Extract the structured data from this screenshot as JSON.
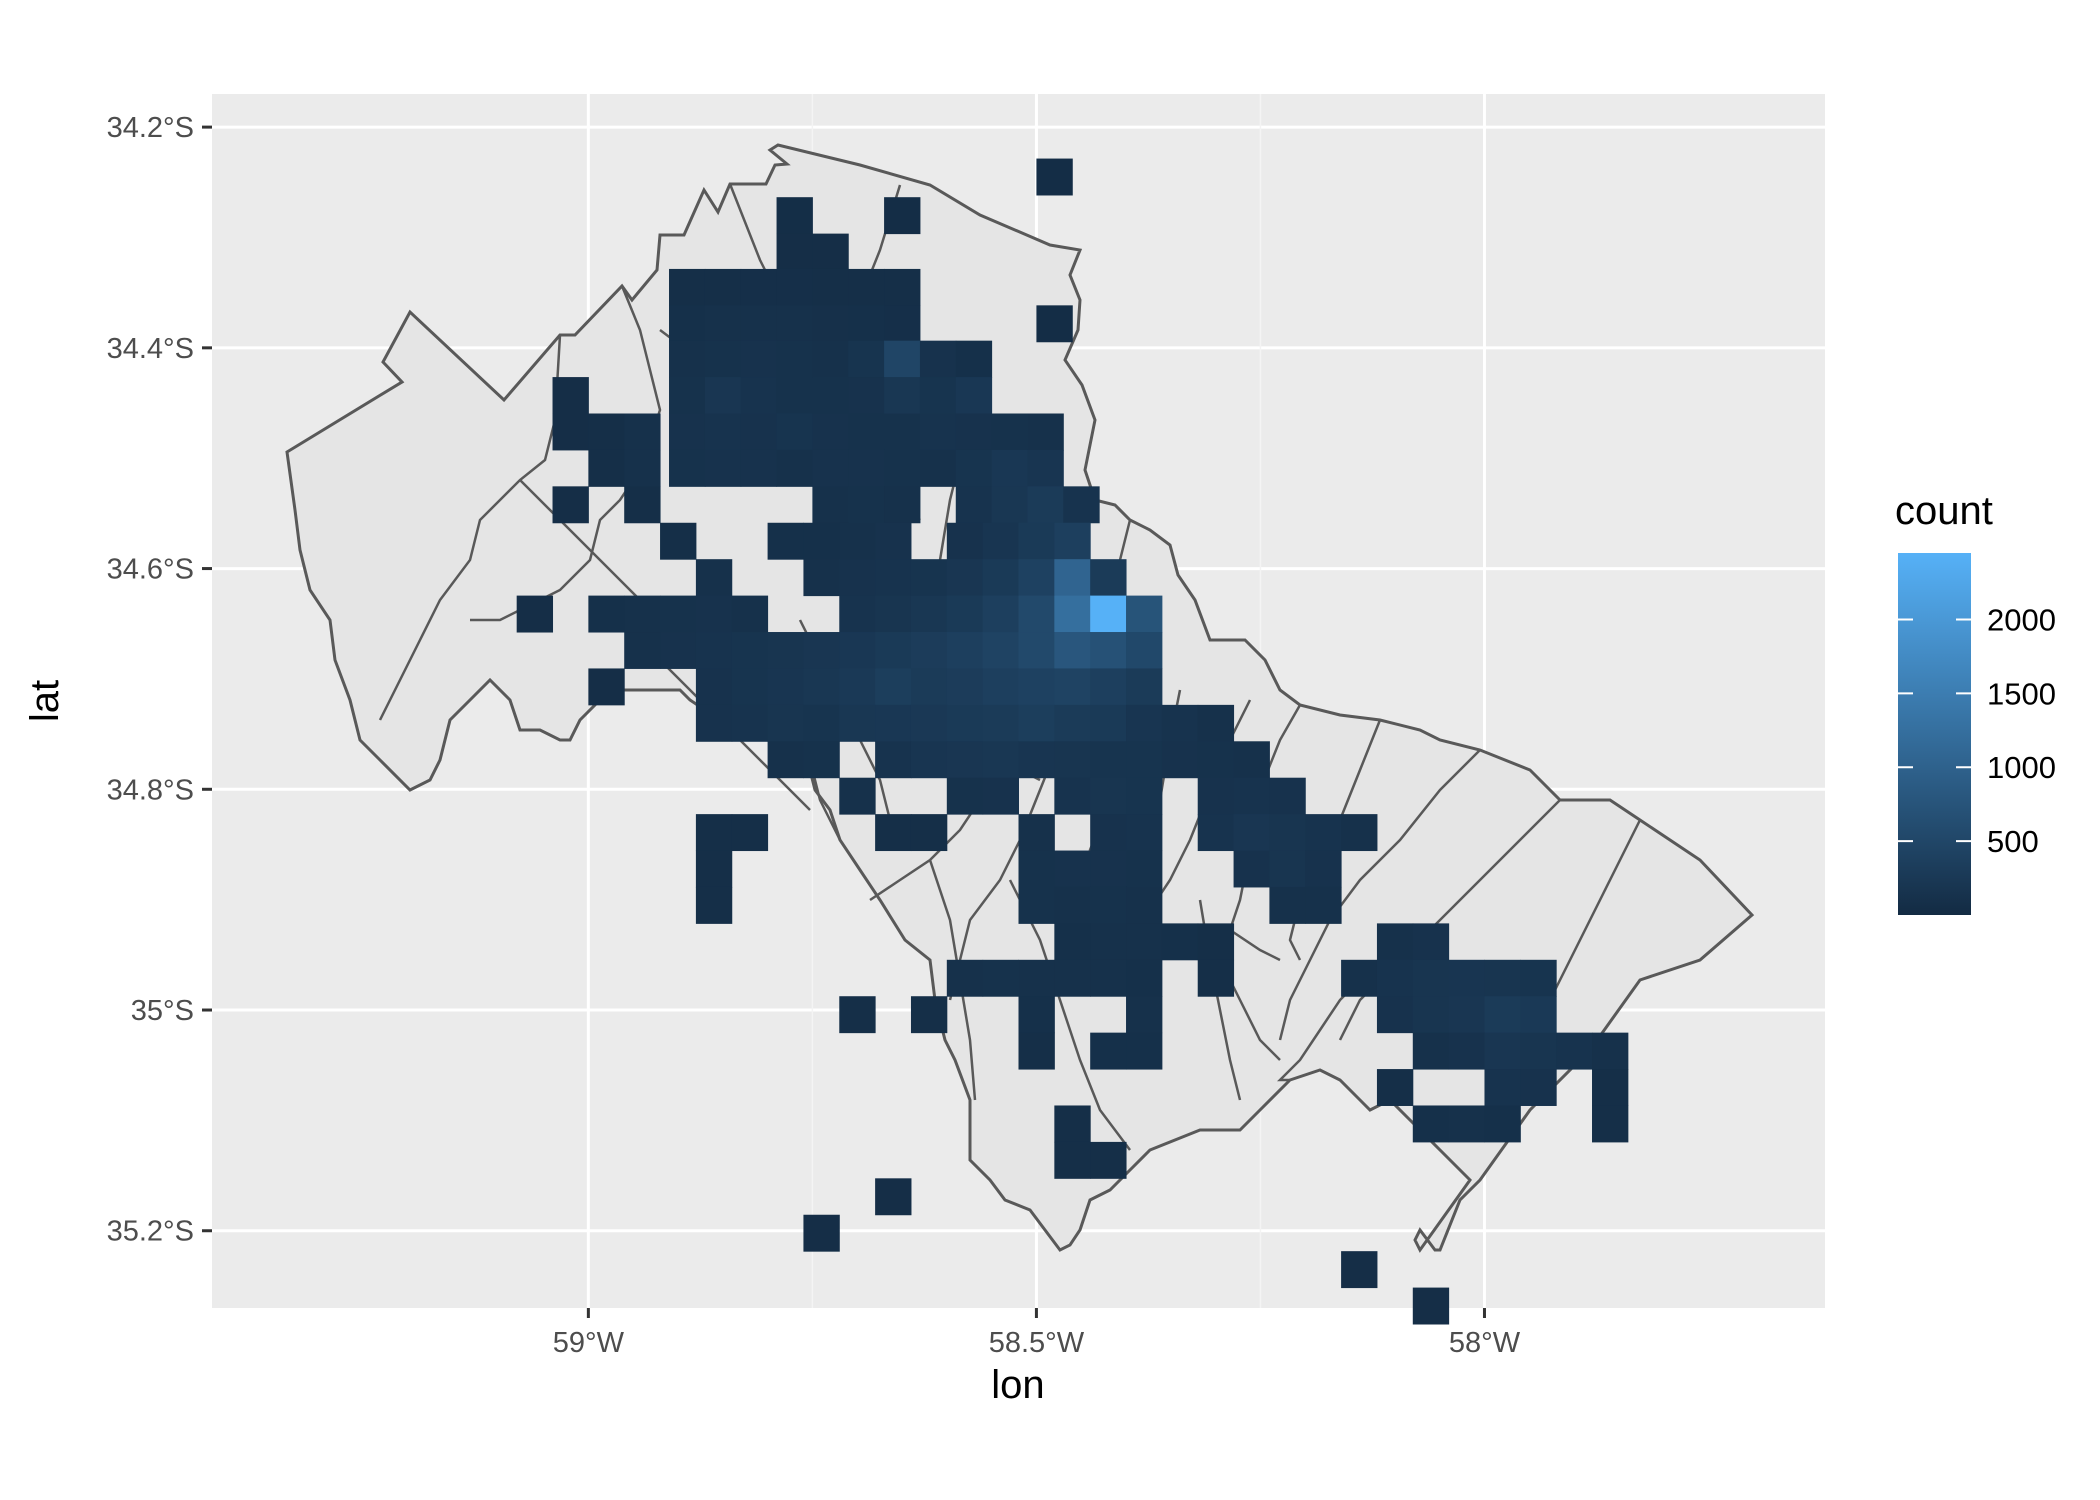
{
  "chart_data": {
    "type": "heatmap",
    "subtype": "2d-bin-count over map",
    "title": "",
    "xlabel": "lon",
    "ylabel": "lat",
    "xlim": [
      -59.42,
      -57.62
    ],
    "ylim": [
      -35.27,
      -34.17
    ],
    "x_ticks": [
      {
        "value": -59.0,
        "label": "59°W"
      },
      {
        "value": -58.5,
        "label": "58.5°W"
      },
      {
        "value": -58.0,
        "label": "58°W"
      }
    ],
    "y_ticks": [
      {
        "value": -34.2,
        "label": "34.2°S"
      },
      {
        "value": -34.4,
        "label": "34.4°S"
      },
      {
        "value": -34.6,
        "label": "34.6°S"
      },
      {
        "value": -34.8,
        "label": "34.8°S"
      },
      {
        "value": -35.0,
        "label": "35°S"
      },
      {
        "value": -35.2,
        "label": "35.2°S"
      }
    ],
    "grid": true,
    "legend": {
      "title": "count",
      "position": "right",
      "range": [
        0,
        2450
      ],
      "breaks": [
        500,
        1000,
        1500,
        2000
      ],
      "colors": [
        "#132b43",
        "#56b1f7"
      ]
    },
    "bin_size": {
      "lon": 0.04,
      "lat": 0.033
    },
    "bin_counts": [
      [
        -58.48,
        -34.245,
        20
      ],
      [
        -58.65,
        -34.28,
        20
      ],
      [
        -58.77,
        -34.28,
        25
      ],
      [
        -58.77,
        -34.313,
        30
      ],
      [
        -58.73,
        -34.313,
        30
      ],
      [
        -58.89,
        -34.345,
        40
      ],
      [
        -58.85,
        -34.345,
        40
      ],
      [
        -58.81,
        -34.345,
        45
      ],
      [
        -58.77,
        -34.345,
        45
      ],
      [
        -58.73,
        -34.345,
        40
      ],
      [
        -58.69,
        -34.345,
        40
      ],
      [
        -58.65,
        -34.345,
        35
      ],
      [
        -58.89,
        -34.378,
        50
      ],
      [
        -58.85,
        -34.378,
        60
      ],
      [
        -58.81,
        -34.378,
        60
      ],
      [
        -58.77,
        -34.378,
        60
      ],
      [
        -58.73,
        -34.378,
        55
      ],
      [
        -58.69,
        -34.378,
        50
      ],
      [
        -58.65,
        -34.378,
        45
      ],
      [
        -58.48,
        -34.378,
        20
      ],
      [
        -58.89,
        -34.41,
        60
      ],
      [
        -58.85,
        -34.41,
        70
      ],
      [
        -58.81,
        -34.41,
        80
      ],
      [
        -58.77,
        -34.41,
        70
      ],
      [
        -58.73,
        -34.41,
        60
      ],
      [
        -58.69,
        -34.41,
        100
      ],
      [
        -58.65,
        -34.41,
        360
      ],
      [
        -58.61,
        -34.41,
        80
      ],
      [
        -58.57,
        -34.41,
        50
      ],
      [
        -59.02,
        -34.443,
        30
      ],
      [
        -58.89,
        -34.443,
        70
      ],
      [
        -58.85,
        -34.443,
        130
      ],
      [
        -58.81,
        -34.443,
        90
      ],
      [
        -58.77,
        -34.443,
        70
      ],
      [
        -58.73,
        -34.443,
        70
      ],
      [
        -58.69,
        -34.443,
        80
      ],
      [
        -58.65,
        -34.443,
        140
      ],
      [
        -58.61,
        -34.443,
        100
      ],
      [
        -58.57,
        -34.443,
        150
      ],
      [
        -59.02,
        -34.476,
        30
      ],
      [
        -58.98,
        -34.476,
        40
      ],
      [
        -58.94,
        -34.476,
        60
      ],
      [
        -58.89,
        -34.476,
        80
      ],
      [
        -58.85,
        -34.476,
        90
      ],
      [
        -58.81,
        -34.476,
        80
      ],
      [
        -58.77,
        -34.476,
        100
      ],
      [
        -58.73,
        -34.476,
        80
      ],
      [
        -58.69,
        -34.476,
        70
      ],
      [
        -58.65,
        -34.476,
        70
      ],
      [
        -58.61,
        -34.476,
        90
      ],
      [
        -58.57,
        -34.476,
        80
      ],
      [
        -58.53,
        -34.476,
        70
      ],
      [
        -58.49,
        -34.476,
        60
      ],
      [
        -58.98,
        -34.509,
        40
      ],
      [
        -58.94,
        -34.509,
        60
      ],
      [
        -58.89,
        -34.509,
        70
      ],
      [
        -58.85,
        -34.509,
        80
      ],
      [
        -58.81,
        -34.509,
        80
      ],
      [
        -58.77,
        -34.509,
        60
      ],
      [
        -58.73,
        -34.509,
        80
      ],
      [
        -58.69,
        -34.509,
        80
      ],
      [
        -58.65,
        -34.509,
        70
      ],
      [
        -58.61,
        -34.509,
        60
      ],
      [
        -58.57,
        -34.509,
        100
      ],
      [
        -58.53,
        -34.509,
        150
      ],
      [
        -58.49,
        -34.509,
        120
      ],
      [
        -59.02,
        -34.542,
        30
      ],
      [
        -58.94,
        -34.542,
        40
      ],
      [
        -58.73,
        -34.542,
        60
      ],
      [
        -58.69,
        -34.542,
        70
      ],
      [
        -58.65,
        -34.542,
        60
      ],
      [
        -58.57,
        -34.542,
        90
      ],
      [
        -58.53,
        -34.542,
        140
      ],
      [
        -58.49,
        -34.542,
        200
      ],
      [
        -58.45,
        -34.542,
        90
      ],
      [
        -58.9,
        -34.575,
        40
      ],
      [
        -58.78,
        -34.575,
        50
      ],
      [
        -58.74,
        -34.575,
        50
      ],
      [
        -58.7,
        -34.575,
        60
      ],
      [
        -58.66,
        -34.575,
        80
      ],
      [
        -58.58,
        -34.575,
        80
      ],
      [
        -58.54,
        -34.575,
        120
      ],
      [
        -58.5,
        -34.575,
        180
      ],
      [
        -58.46,
        -34.575,
        260
      ],
      [
        -58.86,
        -34.608,
        60
      ],
      [
        -58.74,
        -34.608,
        60
      ],
      [
        -58.7,
        -34.608,
        80
      ],
      [
        -58.66,
        -34.608,
        90
      ],
      [
        -58.62,
        -34.608,
        100
      ],
      [
        -58.58,
        -34.608,
        130
      ],
      [
        -58.54,
        -34.608,
        180
      ],
      [
        -58.5,
        -34.608,
        300
      ],
      [
        -58.46,
        -34.608,
        900
      ],
      [
        -58.42,
        -34.608,
        200
      ],
      [
        -59.06,
        -34.641,
        30
      ],
      [
        -58.98,
        -34.641,
        50
      ],
      [
        -58.94,
        -34.641,
        60
      ],
      [
        -58.9,
        -34.641,
        70
      ],
      [
        -58.86,
        -34.641,
        80
      ],
      [
        -58.82,
        -34.641,
        60
      ],
      [
        -58.7,
        -34.641,
        90
      ],
      [
        -58.66,
        -34.641,
        110
      ],
      [
        -58.62,
        -34.641,
        140
      ],
      [
        -58.58,
        -34.641,
        180
      ],
      [
        -58.54,
        -34.641,
        260
      ],
      [
        -58.5,
        -34.641,
        420
      ],
      [
        -58.46,
        -34.641,
        1100
      ],
      [
        -58.42,
        -34.641,
        2450
      ],
      [
        -58.38,
        -34.641,
        600
      ],
      [
        -58.94,
        -34.674,
        60
      ],
      [
        -58.9,
        -34.674,
        80
      ],
      [
        -58.86,
        -34.674,
        90
      ],
      [
        -58.82,
        -34.674,
        100
      ],
      [
        -58.78,
        -34.674,
        110
      ],
      [
        -58.74,
        -34.674,
        130
      ],
      [
        -58.7,
        -34.674,
        150
      ],
      [
        -58.66,
        -34.674,
        180
      ],
      [
        -58.62,
        -34.674,
        220
      ],
      [
        -58.58,
        -34.674,
        260
      ],
      [
        -58.54,
        -34.674,
        320
      ],
      [
        -58.5,
        -34.674,
        420
      ],
      [
        -58.46,
        -34.674,
        650
      ],
      [
        -58.42,
        -34.674,
        550
      ],
      [
        -58.38,
        -34.674,
        400
      ],
      [
        -58.98,
        -34.707,
        30
      ],
      [
        -58.86,
        -34.707,
        80
      ],
      [
        -58.82,
        -34.707,
        100
      ],
      [
        -58.78,
        -34.707,
        120
      ],
      [
        -58.74,
        -34.707,
        140
      ],
      [
        -58.7,
        -34.707,
        170
      ],
      [
        -58.66,
        -34.707,
        240
      ],
      [
        -58.62,
        -34.707,
        200
      ],
      [
        -58.58,
        -34.707,
        220
      ],
      [
        -58.54,
        -34.707,
        260
      ],
      [
        -58.5,
        -34.707,
        300
      ],
      [
        -58.46,
        -34.707,
        320
      ],
      [
        -58.42,
        -34.707,
        260
      ],
      [
        -58.38,
        -34.707,
        200
      ],
      [
        -58.86,
        -34.74,
        80
      ],
      [
        -58.82,
        -34.74,
        90
      ],
      [
        -58.78,
        -34.74,
        110
      ],
      [
        -58.74,
        -34.74,
        100
      ],
      [
        -58.7,
        -34.74,
        140
      ],
      [
        -58.66,
        -34.74,
        150
      ],
      [
        -58.62,
        -34.74,
        160
      ],
      [
        -58.58,
        -34.74,
        180
      ],
      [
        -58.54,
        -34.74,
        200
      ],
      [
        -58.5,
        -34.74,
        240
      ],
      [
        -58.46,
        -34.74,
        200
      ],
      [
        -58.42,
        -34.74,
        180
      ],
      [
        -58.38,
        -34.74,
        120
      ],
      [
        -58.34,
        -34.74,
        90
      ],
      [
        -58.3,
        -34.74,
        60
      ],
      [
        -58.78,
        -34.773,
        60
      ],
      [
        -58.74,
        -34.773,
        70
      ],
      [
        -58.66,
        -34.773,
        90
      ],
      [
        -58.62,
        -34.773,
        120
      ],
      [
        -58.58,
        -34.773,
        130
      ],
      [
        -58.54,
        -34.773,
        140
      ],
      [
        -58.5,
        -34.773,
        120
      ],
      [
        -58.46,
        -34.773,
        110
      ],
      [
        -58.42,
        -34.773,
        100
      ],
      [
        -58.38,
        -34.773,
        100
      ],
      [
        -58.34,
        -34.773,
        80
      ],
      [
        -58.3,
        -34.773,
        70
      ],
      [
        -58.26,
        -34.773,
        60
      ],
      [
        -58.7,
        -34.806,
        60
      ],
      [
        -58.58,
        -34.806,
        70
      ],
      [
        -58.54,
        -34.806,
        80
      ],
      [
        -58.46,
        -34.806,
        90
      ],
      [
        -58.42,
        -34.806,
        110
      ],
      [
        -58.38,
        -34.806,
        100
      ],
      [
        -58.3,
        -34.806,
        80
      ],
      [
        -58.26,
        -34.806,
        90
      ],
      [
        -58.22,
        -34.806,
        80
      ],
      [
        -58.86,
        -34.839,
        40
      ],
      [
        -58.82,
        -34.839,
        40
      ],
      [
        -58.66,
        -34.839,
        40
      ],
      [
        -58.62,
        -34.839,
        40
      ],
      [
        -58.5,
        -34.839,
        60
      ],
      [
        -58.42,
        -34.839,
        80
      ],
      [
        -58.38,
        -34.839,
        90
      ],
      [
        -58.3,
        -34.839,
        90
      ],
      [
        -58.26,
        -34.839,
        130
      ],
      [
        -58.22,
        -34.839,
        110
      ],
      [
        -58.18,
        -34.839,
        90
      ],
      [
        -58.14,
        -34.839,
        60
      ],
      [
        -58.86,
        -34.872,
        40
      ],
      [
        -58.5,
        -34.872,
        70
      ],
      [
        -58.46,
        -34.872,
        80
      ],
      [
        -58.42,
        -34.872,
        80
      ],
      [
        -58.38,
        -34.872,
        70
      ],
      [
        -58.26,
        -34.872,
        80
      ],
      [
        -58.22,
        -34.872,
        110
      ],
      [
        -58.18,
        -34.872,
        80
      ],
      [
        -58.86,
        -34.905,
        40
      ],
      [
        -58.5,
        -34.905,
        70
      ],
      [
        -58.46,
        -34.905,
        60
      ],
      [
        -58.42,
        -34.905,
        70
      ],
      [
        -58.38,
        -34.905,
        60
      ],
      [
        -58.22,
        -34.905,
        60
      ],
      [
        -58.18,
        -34.905,
        60
      ],
      [
        -58.46,
        -34.938,
        50
      ],
      [
        -58.42,
        -34.938,
        60
      ],
      [
        -58.38,
        -34.938,
        60
      ],
      [
        -58.34,
        -34.938,
        50
      ],
      [
        -58.3,
        -34.938,
        40
      ],
      [
        -58.1,
        -34.938,
        60
      ],
      [
        -58.06,
        -34.938,
        80
      ],
      [
        -58.58,
        -34.971,
        60
      ],
      [
        -58.54,
        -34.971,
        70
      ],
      [
        -58.5,
        -34.971,
        60
      ],
      [
        -58.46,
        -34.971,
        60
      ],
      [
        -58.42,
        -34.971,
        60
      ],
      [
        -58.38,
        -34.971,
        50
      ],
      [
        -58.3,
        -34.971,
        40
      ],
      [
        -58.14,
        -34.971,
        60
      ],
      [
        -58.1,
        -34.971,
        90
      ],
      [
        -58.06,
        -34.971,
        110
      ],
      [
        -58.02,
        -34.971,
        120
      ],
      [
        -57.98,
        -34.971,
        110
      ],
      [
        -57.94,
        -34.971,
        100
      ],
      [
        -58.7,
        -35.004,
        40
      ],
      [
        -58.62,
        -35.004,
        40
      ],
      [
        -58.5,
        -35.004,
        50
      ],
      [
        -58.38,
        -35.004,
        60
      ],
      [
        -58.1,
        -35.004,
        80
      ],
      [
        -58.06,
        -35.004,
        110
      ],
      [
        -58.02,
        -35.004,
        130
      ],
      [
        -57.98,
        -35.004,
        200
      ],
      [
        -57.94,
        -35.004,
        170
      ],
      [
        -58.5,
        -35.037,
        40
      ],
      [
        -58.42,
        -35.037,
        50
      ],
      [
        -58.38,
        -35.037,
        50
      ],
      [
        -58.06,
        -35.037,
        60
      ],
      [
        -58.02,
        -35.037,
        80
      ],
      [
        -57.98,
        -35.037,
        130
      ],
      [
        -57.94,
        -35.037,
        110
      ],
      [
        -57.9,
        -35.037,
        90
      ],
      [
        -57.86,
        -35.037,
        60
      ],
      [
        -58.1,
        -35.07,
        40
      ],
      [
        -57.98,
        -35.07,
        90
      ],
      [
        -57.94,
        -35.07,
        80
      ],
      [
        -57.86,
        -35.07,
        40
      ],
      [
        -58.46,
        -35.103,
        40
      ],
      [
        -58.06,
        -35.103,
        50
      ],
      [
        -58.02,
        -35.103,
        60
      ],
      [
        -57.98,
        -35.103,
        50
      ],
      [
        -57.86,
        -35.103,
        40
      ],
      [
        -58.46,
        -35.136,
        40
      ],
      [
        -58.42,
        -35.136,
        40
      ],
      [
        -58.66,
        -35.169,
        30
      ],
      [
        -58.74,
        -35.202,
        30
      ],
      [
        -58.14,
        -35.235,
        30
      ],
      [
        -58.06,
        -35.268,
        30
      ]
    ]
  }
}
